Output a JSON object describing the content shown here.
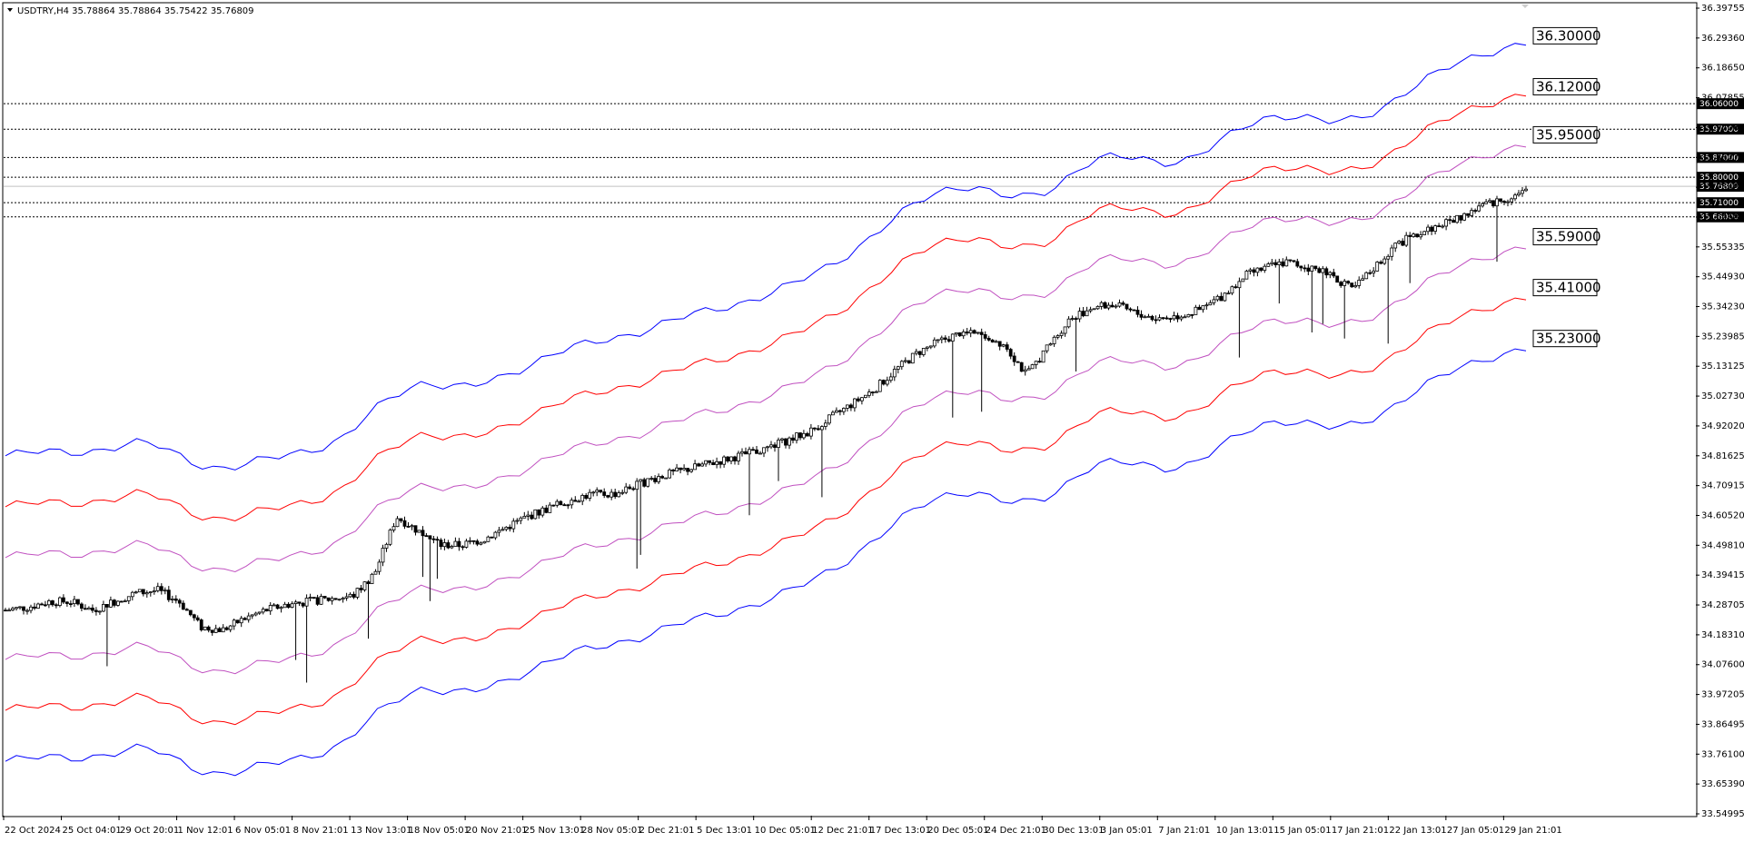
{
  "chart_data": {
    "type": "candlestick",
    "symbol_header": "USDTRY,H4  35.78864 35.78864 35.75422 35.76809",
    "current_price": 35.76809,
    "ylim": [
      33.5499,
      36.3976
    ],
    "y_ticks": [
      "36.39755",
      "36.29360",
      "36.18650",
      "36.07855",
      "35.97065",
      "35.86270",
      "35.75480",
      "35.64685",
      "35.55335",
      "35.44930",
      "35.34230",
      "35.23985",
      "35.13125",
      "35.02730",
      "34.92020",
      "34.81625",
      "34.70915",
      "34.60520",
      "34.49810",
      "34.39415",
      "34.28705",
      "34.18310",
      "34.07600",
      "33.97205",
      "33.86495",
      "33.76100",
      "33.65390",
      "33.54995"
    ],
    "x_ticks": [
      "22 Oct 2024",
      "25 Oct 04:01",
      "29 Oct 20:01",
      "1 Nov 12:01",
      "6 Nov 05:01",
      "8 Nov 21:01",
      "13 Nov 13:01",
      "18 Nov 05:01",
      "20 Nov 21:01",
      "25 Nov 13:01",
      "28 Nov 05:01",
      "2 Dec 21:01",
      "5 Dec 13:01",
      "10 Dec 05:01",
      "12 Dec 21:01",
      "17 Dec 13:01",
      "20 Dec 05:01",
      "24 Dec 21:01",
      "30 Dec 13:01",
      "3 Jan 05:01",
      "7 Jan 21:01",
      "10 Jan 13:01",
      "15 Jan 05:01",
      "17 Jan 21:01",
      "22 Jan 13:01",
      "27 Jan 05:01",
      "29 Jan 21:01"
    ],
    "horizontal_lines": [
      {
        "value": 36.06,
        "label": "36.06000"
      },
      {
        "value": 35.97,
        "label": "35.97000"
      },
      {
        "value": 35.87,
        "label": "35.87000"
      },
      {
        "value": 35.8,
        "label": "35.80000"
      },
      {
        "value": 35.71,
        "label": "35.71000"
      },
      {
        "value": 35.66,
        "label": "35.66000"
      }
    ],
    "band_labels": [
      {
        "value": 36.3,
        "label": "36.30000"
      },
      {
        "value": 36.12,
        "label": "36.12000"
      },
      {
        "value": 35.95,
        "label": "35.95000"
      },
      {
        "value": 35.59,
        "label": "35.59000"
      },
      {
        "value": 35.41,
        "label": "35.41000"
      },
      {
        "value": 35.23,
        "label": "35.23000"
      }
    ],
    "band_offsets": [
      {
        "name": "upper-3",
        "offset": 0.54,
        "color": "#0000ff"
      },
      {
        "name": "upper-2",
        "offset": 0.36,
        "color": "#ff0000"
      },
      {
        "name": "upper-1",
        "offset": 0.18,
        "color": "#c050c0"
      },
      {
        "name": "lower-1",
        "offset": -0.18,
        "color": "#c050c0"
      },
      {
        "name": "lower-2",
        "offset": -0.36,
        "color": "#ff0000"
      },
      {
        "name": "lower-3",
        "offset": -0.54,
        "color": "#0000ff"
      }
    ],
    "midline_path": [
      34.27,
      34.28,
      34.3,
      34.3,
      34.27,
      34.3,
      34.33,
      34.34,
      34.3,
      34.21,
      34.2,
      34.24,
      34.27,
      34.29,
      34.3,
      34.31,
      34.32,
      34.4,
      34.6,
      34.55,
      34.5,
      34.5,
      34.52,
      34.56,
      34.6,
      34.63,
      34.66,
      34.68,
      34.68,
      34.71,
      34.74,
      34.76,
      34.78,
      34.8,
      34.82,
      34.84,
      34.87,
      34.9,
      34.95,
      35.0,
      35.05,
      35.12,
      35.18,
      35.22,
      35.25,
      35.24,
      35.21,
      35.1,
      35.2,
      35.3,
      35.34,
      35.35,
      35.32,
      35.3,
      35.31,
      35.33,
      35.38,
      35.45,
      35.48,
      35.5,
      35.48,
      35.46,
      35.4,
      35.48,
      35.56,
      35.6,
      35.63,
      35.66,
      35.7,
      35.72,
      35.75
    ],
    "colors": {
      "candle": "#000000",
      "grid": "#000000",
      "background": "#ffffff"
    }
  }
}
